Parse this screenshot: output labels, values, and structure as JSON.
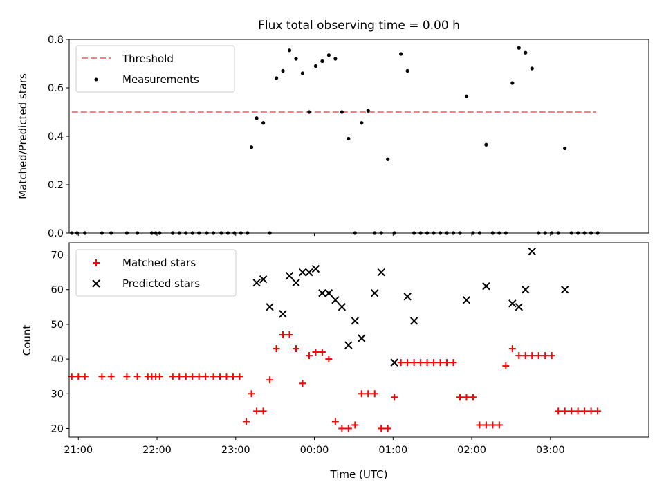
{
  "chart_data": [
    {
      "type": "scatter",
      "title": "Flux total observing time = 0.00 h",
      "xlabel": "",
      "ylabel": "Matched/Predicted stars",
      "xlim": [
        "20:53",
        "04:15"
      ],
      "ylim": [
        0,
        0.8
      ],
      "yticks": [
        "0.0",
        "0.2",
        "0.4",
        "0.6",
        "0.8"
      ],
      "xticks": [
        "21:00",
        "22:00",
        "23:00",
        "00:00",
        "01:00",
        "02:00",
        "03:00"
      ],
      "show_xtick_labels": false,
      "grid": false,
      "legend_position": "upper-left",
      "colors": {
        "threshold": "#ff7f7f",
        "measurements": "#000000"
      },
      "series": [
        {
          "name": "Threshold",
          "kind": "dashed-line",
          "x": [
            "20:55",
            "03:35"
          ],
          "y": [
            0.5,
            0.5
          ]
        },
        {
          "name": "Measurements",
          "kind": "dots",
          "x": [
            "20:55",
            "20:59",
            "21:05",
            "21:18",
            "21:25",
            "21:37",
            "21:45",
            "21:56",
            "21:59",
            "22:02",
            "22:12",
            "22:17",
            "22:22",
            "22:27",
            "22:32",
            "22:38",
            "22:43",
            "22:49",
            "22:54",
            "22:59",
            "23:04",
            "23:09",
            "23:12",
            "23:16",
            "23:21",
            "23:26",
            "23:31",
            "23:36",
            "23:41",
            "23:46",
            "23:51",
            "23:56",
            "00:01",
            "00:06",
            "00:11",
            "00:16",
            "00:21",
            "00:26",
            "00:31",
            "00:36",
            "00:41",
            "00:46",
            "00:51",
            "00:56",
            "01:01",
            "01:06",
            "01:11",
            "01:16",
            "01:21",
            "01:26",
            "01:31",
            "01:36",
            "01:41",
            "01:46",
            "01:51",
            "01:56",
            "02:01",
            "02:06",
            "02:11",
            "02:16",
            "02:21",
            "02:26",
            "02:31",
            "02:36",
            "02:41",
            "02:46",
            "02:51",
            "02:56",
            "03:01",
            "03:06",
            "03:11",
            "03:16",
            "03:21",
            "03:26",
            "03:31",
            "03:36"
          ],
          "y": [
            0,
            0,
            0,
            0,
            0,
            0,
            0,
            0,
            0,
            0,
            0,
            0,
            0,
            0,
            0,
            0,
            0,
            0,
            0,
            0,
            0,
            0,
            0.355,
            0.475,
            0.455,
            0,
            0.64,
            0.67,
            0.755,
            0.72,
            0.66,
            0.5,
            0.69,
            0.71,
            0.735,
            0.72,
            0.5,
            0.39,
            0,
            0.455,
            0.505,
            0,
            0,
            0.305,
            0,
            0.74,
            0.67,
            0,
            0,
            0,
            0,
            0,
            0,
            0,
            0,
            0.565,
            0,
            0,
            0.365,
            0,
            0,
            0,
            0.62,
            0.765,
            0.745,
            0.68,
            0,
            0,
            0,
            0,
            0.35,
            0,
            0,
            0,
            0,
            0
          ]
        }
      ]
    },
    {
      "type": "scatter",
      "title": "",
      "xlabel": "Time (UTC)",
      "ylabel": "Count",
      "xlim": [
        "20:53",
        "04:15"
      ],
      "ylim": [
        17.5,
        73.5
      ],
      "yticks": [
        "20",
        "30",
        "40",
        "50",
        "60",
        "70"
      ],
      "xticks": [
        "21:00",
        "22:00",
        "23:00",
        "00:00",
        "01:00",
        "02:00",
        "03:00"
      ],
      "grid": false,
      "legend_position": "upper-left",
      "colors": {
        "matched": "#ff0000",
        "predicted": "#000000"
      },
      "series": [
        {
          "name": "Matched stars",
          "marker": "plus",
          "x": [
            "20:55",
            "21:00",
            "21:05",
            "21:18",
            "21:25",
            "21:37",
            "21:45",
            "21:53",
            "21:56",
            "21:59",
            "22:02",
            "22:12",
            "22:17",
            "22:22",
            "22:27",
            "22:32",
            "22:37",
            "22:43",
            "22:48",
            "22:53",
            "22:58",
            "23:03",
            "23:08",
            "23:12",
            "23:16",
            "23:21",
            "23:26",
            "23:31",
            "23:36",
            "23:41",
            "23:46",
            "23:51",
            "23:56",
            "00:01",
            "00:06",
            "00:11",
            "00:16",
            "00:21",
            "00:26",
            "00:31",
            "00:36",
            "00:41",
            "00:46",
            "00:51",
            "00:56",
            "01:01",
            "01:06",
            "01:11",
            "01:16",
            "01:21",
            "01:26",
            "01:31",
            "01:36",
            "01:41",
            "01:46",
            "01:51",
            "01:56",
            "02:01",
            "02:06",
            "02:11",
            "02:16",
            "02:21",
            "02:26",
            "02:31",
            "02:36",
            "02:41",
            "02:46",
            "02:51",
            "02:56",
            "03:01",
            "03:06",
            "03:11",
            "03:16",
            "03:21",
            "03:26",
            "03:31",
            "03:36"
          ],
          "y": [
            35,
            35,
            35,
            35,
            35,
            35,
            35,
            35,
            35,
            35,
            35,
            35,
            35,
            35,
            35,
            35,
            35,
            35,
            35,
            35,
            35,
            35,
            22,
            30,
            25,
            25,
            34,
            43,
            47,
            47,
            43,
            33,
            41,
            42,
            42,
            40,
            22,
            20,
            20,
            21,
            30,
            30,
            30,
            20,
            20,
            29,
            39,
            39,
            39,
            39,
            39,
            39,
            39,
            39,
            39,
            29,
            29,
            29,
            21,
            21,
            21,
            21,
            38,
            43,
            41,
            41,
            41,
            41,
            41,
            41,
            25,
            25,
            25,
            25,
            25,
            25,
            25
          ]
        },
        {
          "name": "Predicted stars",
          "marker": "x",
          "x": [
            "23:16",
            "23:21",
            "23:26",
            "23:36",
            "23:41",
            "23:46",
            "23:51",
            "23:56",
            "00:01",
            "00:06",
            "00:11",
            "00:16",
            "00:21",
            "00:26",
            "00:31",
            "00:36",
            "00:46",
            "00:51",
            "01:01",
            "01:11",
            "01:16",
            "01:56",
            "02:11",
            "02:31",
            "02:36",
            "02:41",
            "02:46",
            "03:11"
          ],
          "y": [
            62,
            63,
            55,
            53,
            64,
            62,
            65,
            65,
            66,
            59,
            59,
            57,
            55,
            44,
            51,
            46,
            59,
            65,
            39,
            58,
            51,
            57,
            61,
            56,
            55,
            60,
            71,
            60
          ]
        }
      ]
    }
  ]
}
